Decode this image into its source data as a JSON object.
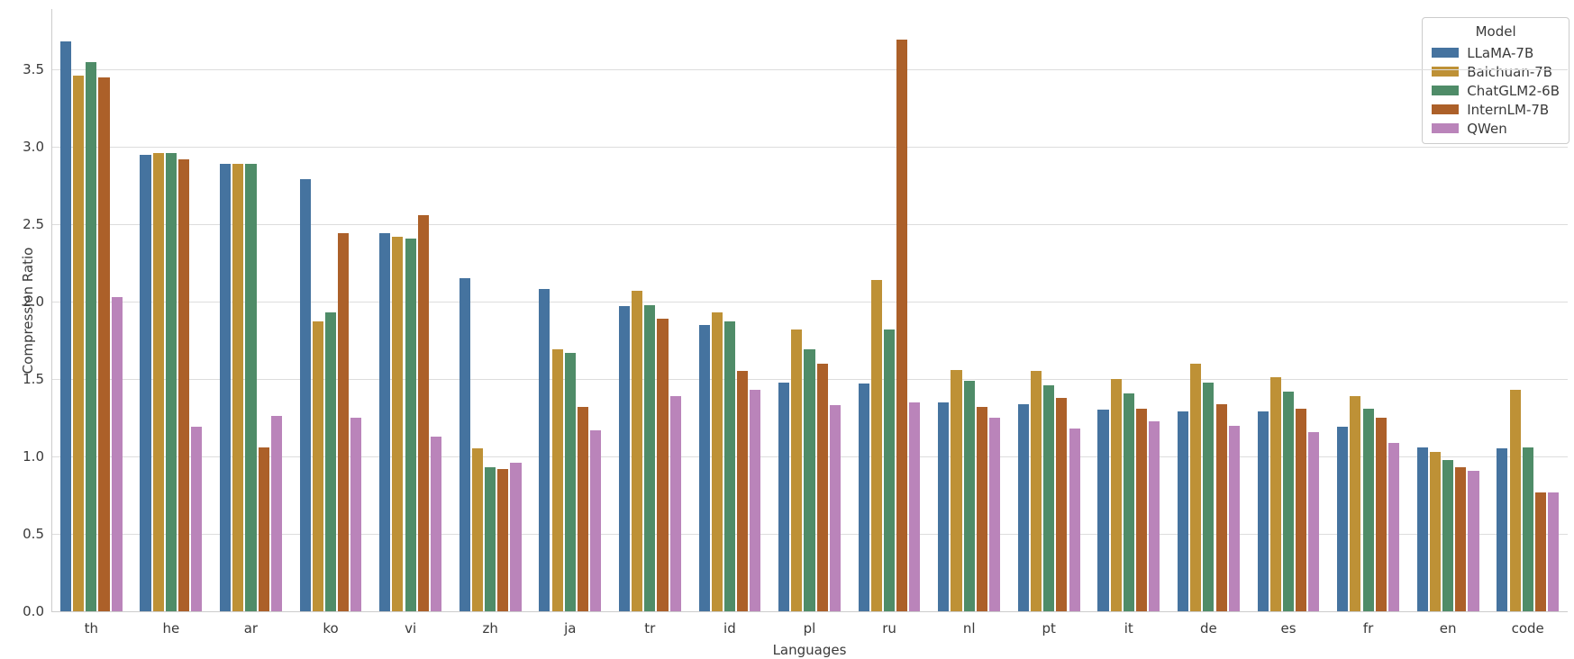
{
  "chart_data": {
    "type": "bar",
    "title": "",
    "xlabel": "Languages",
    "ylabel": "Compression Ratio",
    "legend_title": "Model",
    "legend_position": "upper right",
    "grid": true,
    "grid_color": "#dddddd",
    "spine_color": "#cccccc",
    "text_color": "#3a3a3a",
    "ylim": [
      0,
      3.89
    ],
    "y_ticks": [
      0.0,
      0.5,
      1.0,
      1.5,
      2.0,
      2.5,
      3.0,
      3.5
    ],
    "categories": [
      "th",
      "he",
      "ar",
      "ko",
      "vi",
      "zh",
      "ja",
      "tr",
      "id",
      "pl",
      "ru",
      "nl",
      "pt",
      "it",
      "de",
      "es",
      "fr",
      "en",
      "code"
    ],
    "series": [
      {
        "name": "LLaMA-7B",
        "color": "#45739F",
        "values": [
          3.68,
          2.95,
          2.89,
          2.79,
          2.44,
          2.15,
          2.08,
          1.97,
          1.85,
          1.48,
          1.47,
          1.35,
          1.34,
          1.3,
          1.29,
          1.29,
          1.19,
          1.06,
          1.05
        ]
      },
      {
        "name": "Baichuan-7B",
        "color": "#BE9136",
        "values": [
          3.46,
          2.96,
          2.89,
          1.87,
          2.42,
          1.05,
          1.69,
          2.07,
          1.93,
          1.82,
          2.14,
          1.56,
          1.55,
          1.5,
          1.6,
          1.51,
          1.39,
          1.03,
          1.43
        ]
      },
      {
        "name": "ChatGLM2-6B",
        "color": "#4F8C68",
        "values": [
          3.55,
          2.96,
          2.89,
          1.93,
          2.41,
          0.93,
          1.67,
          1.98,
          1.87,
          1.69,
          1.82,
          1.49,
          1.46,
          1.41,
          1.48,
          1.42,
          1.31,
          0.98,
          1.06
        ]
      },
      {
        "name": "InternLM-7B",
        "color": "#AC6029",
        "values": [
          3.45,
          2.92,
          1.06,
          2.44,
          2.56,
          0.92,
          1.32,
          1.89,
          1.55,
          1.6,
          3.69,
          1.32,
          1.38,
          1.31,
          1.34,
          1.31,
          1.25,
          0.93,
          0.77
        ]
      },
      {
        "name": "QWen",
        "color": "#BA84BA",
        "values": [
          2.03,
          1.19,
          1.26,
          1.25,
          1.13,
          0.96,
          1.17,
          1.39,
          1.43,
          1.33,
          1.35,
          1.25,
          1.18,
          1.23,
          1.2,
          1.16,
          1.09,
          0.91,
          0.77
        ]
      }
    ]
  }
}
